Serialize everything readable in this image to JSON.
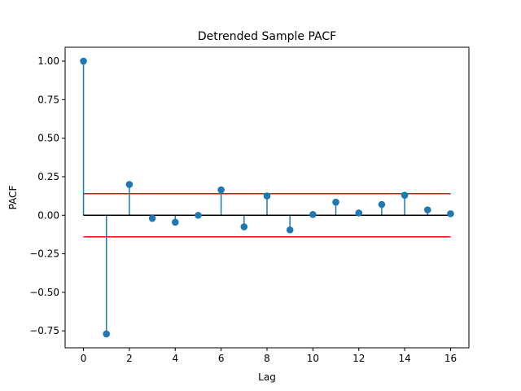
{
  "chart_data": {
    "type": "scatter",
    "subtype": "stem",
    "title": "Detrended Sample PACF",
    "xlabel": "Lag",
    "ylabel": "PACF",
    "xlim": [
      -0.8,
      16.8
    ],
    "ylim": [
      -0.86,
      1.09
    ],
    "xticks": [
      0,
      2,
      4,
      6,
      8,
      10,
      12,
      14,
      16
    ],
    "xtick_labels": [
      "0",
      "2",
      "4",
      "6",
      "8",
      "10",
      "12",
      "14",
      "16"
    ],
    "yticks": [
      1.0,
      0.75,
      0.5,
      0.25,
      0.0,
      -0.25,
      -0.5,
      -0.75
    ],
    "ytick_labels": [
      "1.00",
      "0.75",
      "0.50",
      "0.25",
      "0.00",
      "−0.25",
      "−0.50",
      "−0.75"
    ],
    "grid": false,
    "series": [
      {
        "x": [
          0,
          1,
          2,
          3,
          4,
          5,
          6,
          7,
          8,
          9,
          10,
          11,
          12,
          13,
          14,
          15,
          16
        ],
        "values": [
          1.0,
          -0.77,
          0.2,
          -0.02,
          -0.045,
          0.0,
          0.165,
          -0.075,
          0.125,
          -0.095,
          0.005,
          0.085,
          0.015,
          0.07,
          0.13,
          0.035,
          0.01
        ],
        "color": "#1f77b4"
      }
    ],
    "baseline": {
      "y": 0.0,
      "x_range": [
        0,
        16
      ],
      "color": "#000000"
    },
    "confidence_bounds": {
      "upper": 0.14,
      "lower": -0.14,
      "x_range": [
        0,
        16
      ],
      "color": "#ff0000"
    }
  }
}
